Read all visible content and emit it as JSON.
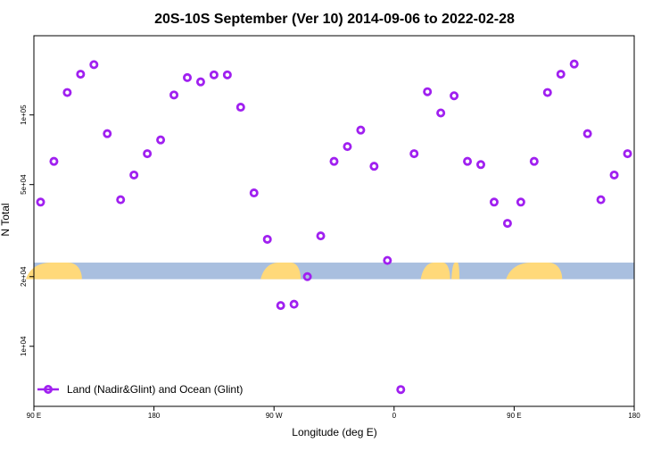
{
  "chart_data": {
    "type": "scatter",
    "title": "20S-10S September (Ver 10)   2014-09-06 to 2022-02-28",
    "xlabel": "Longitude (deg E)",
    "ylabel": "N Total",
    "x_ticks": [
      {
        "value": 90,
        "label": "90 E"
      },
      {
        "value": 180,
        "label": "180"
      },
      {
        "value": 270,
        "label": "90 W"
      },
      {
        "value": 360,
        "label": "0"
      },
      {
        "value": 450,
        "label": "90 E"
      },
      {
        "value": 540,
        "label": "180"
      }
    ],
    "y_ticks": [
      {
        "value": 10000,
        "label": "1e+04"
      },
      {
        "value": 20000,
        "label": "2e+04"
      },
      {
        "value": 50000,
        "label": "5e+04"
      },
      {
        "value": 100000,
        "label": "1e+05"
      }
    ],
    "y_scale": "log",
    "xlim": [
      90,
      540
    ],
    "ylim": [
      5500,
      220000
    ],
    "grid": false,
    "legend": {
      "position": "bottom-left",
      "label": "Land (Nadir&Glint) and Ocean (Glint)"
    },
    "series": [
      {
        "name": "Land (Nadir&Glint) and Ocean (Glint)",
        "color": "#a020f0",
        "marker": "open-circle",
        "x": [
          95,
          105,
          115,
          125,
          135,
          145,
          155,
          165,
          175,
          185,
          195,
          205,
          215,
          225,
          235,
          245,
          255,
          265,
          275,
          285,
          295,
          305,
          315,
          325,
          335,
          345,
          355,
          365,
          375,
          385,
          395,
          405,
          415,
          425,
          435,
          445,
          455,
          465,
          475,
          485,
          495,
          505,
          515,
          525,
          535
        ],
        "y": [
          42000,
          63000,
          125000,
          150000,
          165000,
          83000,
          43000,
          55000,
          68000,
          78000,
          122000,
          145000,
          139000,
          149000,
          149000,
          108000,
          46000,
          29000,
          15000,
          15200,
          20000,
          30000,
          63000,
          73000,
          86000,
          60000,
          23500,
          6500,
          68000,
          126000,
          102000,
          121000,
          63000,
          61000,
          42000,
          34000,
          42000,
          63000,
          125000,
          150000,
          166000,
          83000,
          43000,
          55000,
          68000
        ]
      }
    ],
    "land_band": {
      "y_range": [
        19500,
        23000
      ],
      "ocean_color": "#a9bfdf",
      "land_color": "#ffd97a"
    }
  }
}
